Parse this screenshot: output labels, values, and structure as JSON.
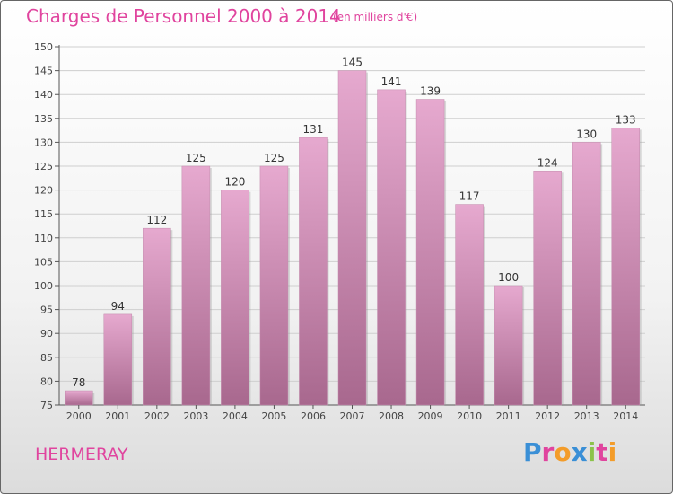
{
  "header": {
    "title": "Charges de Personnel 2000 à 2014",
    "subtitle": "(en milliers d'€)"
  },
  "footer": {
    "place": "HERMERAY",
    "logo": "Proxiti"
  },
  "colors": {
    "accent": "#e0449e",
    "bar_light": "#e6a9cf",
    "bar_dark": "#a8688e"
  },
  "chart_data": {
    "type": "bar",
    "categories": [
      "2000",
      "2001",
      "2002",
      "2003",
      "2004",
      "2005",
      "2006",
      "2007",
      "2008",
      "2009",
      "2010",
      "2011",
      "2012",
      "2013",
      "2014"
    ],
    "values": [
      78,
      94,
      112,
      125,
      120,
      125,
      131,
      145,
      141,
      139,
      117,
      100,
      124,
      130,
      133
    ],
    "title": "Charges de Personnel 2000 à 2014",
    "subtitle": "(en milliers d'€)",
    "ylim": [
      75,
      150
    ],
    "yticks": [
      75,
      80,
      85,
      90,
      95,
      100,
      105,
      110,
      115,
      120,
      125,
      130,
      135,
      140,
      145,
      150
    ],
    "grid": true,
    "data_labels": true
  }
}
